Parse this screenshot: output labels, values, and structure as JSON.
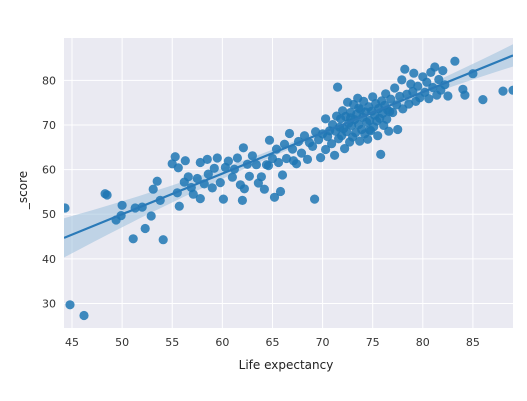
{
  "chart_data": {
    "type": "scatter",
    "xlabel": "Life expectancy",
    "ylabel": "_score",
    "xlim": [
      44.2,
      89.0
    ],
    "ylim": [
      24.5,
      89.5
    ],
    "xticks": [
      45,
      50,
      55,
      60,
      65,
      70,
      75,
      80,
      85
    ],
    "yticks": [
      30,
      40,
      50,
      60,
      70,
      80
    ],
    "grid": true,
    "style": "seaborn darkgrid",
    "colors": {
      "background": "#eaeaf2",
      "grid": "#ffffff",
      "points": "#1f77b4",
      "line": "#2a7ab8",
      "band": "#9bbfdc"
    },
    "regression": {
      "x": [
        44.2,
        89.0
      ],
      "y": [
        44.7,
        85.6
      ]
    },
    "points": [
      [
        44.3,
        51.4
      ],
      [
        44.8,
        29.7
      ],
      [
        46.2,
        27.3
      ],
      [
        48.3,
        54.6
      ],
      [
        48.5,
        54.3
      ],
      [
        49.4,
        48.7
      ],
      [
        50.0,
        52.0
      ],
      [
        49.9,
        49.7
      ],
      [
        51.1,
        44.5
      ],
      [
        51.3,
        51.4
      ],
      [
        52.0,
        51.6
      ],
      [
        52.3,
        46.8
      ],
      [
        52.9,
        49.6
      ],
      [
        53.1,
        55.6
      ],
      [
        53.5,
        57.4
      ],
      [
        54.1,
        44.3
      ],
      [
        53.8,
        53.1
      ],
      [
        55.0,
        61.3
      ],
      [
        55.3,
        62.9
      ],
      [
        55.6,
        60.4
      ],
      [
        55.5,
        54.8
      ],
      [
        55.7,
        51.8
      ],
      [
        56.2,
        57.2
      ],
      [
        56.3,
        62.0
      ],
      [
        56.6,
        58.4
      ],
      [
        56.9,
        56.0
      ],
      [
        57.1,
        54.5
      ],
      [
        57.5,
        58.0
      ],
      [
        57.8,
        61.6
      ],
      [
        57.8,
        53.5
      ],
      [
        58.2,
        56.8
      ],
      [
        58.5,
        62.3
      ],
      [
        58.6,
        59.0
      ],
      [
        59.0,
        55.9
      ],
      [
        59.2,
        60.3
      ],
      [
        59.5,
        62.6
      ],
      [
        59.8,
        57.1
      ],
      [
        60.1,
        53.4
      ],
      [
        60.3,
        60.5
      ],
      [
        60.6,
        61.9
      ],
      [
        61.0,
        58.3
      ],
      [
        61.2,
        60.1
      ],
      [
        61.5,
        62.6
      ],
      [
        61.8,
        56.6
      ],
      [
        62.0,
        53.1
      ],
      [
        62.2,
        55.7
      ],
      [
        62.1,
        64.9
      ],
      [
        62.5,
        61.2
      ],
      [
        62.7,
        58.5
      ],
      [
        63.0,
        63.1
      ],
      [
        63.4,
        61.1
      ],
      [
        63.6,
        57.0
      ],
      [
        63.9,
        58.4
      ],
      [
        64.2,
        55.6
      ],
      [
        64.4,
        61.1
      ],
      [
        64.6,
        60.9
      ],
      [
        64.7,
        66.6
      ],
      [
        65.0,
        62.5
      ],
      [
        65.2,
        53.8
      ],
      [
        65.4,
        64.6
      ],
      [
        65.6,
        61.6
      ],
      [
        65.8,
        55.1
      ],
      [
        66.0,
        58.8
      ],
      [
        66.2,
        65.7
      ],
      [
        66.4,
        62.5
      ],
      [
        66.7,
        68.1
      ],
      [
        67.0,
        64.6
      ],
      [
        67.1,
        62.0
      ],
      [
        67.4,
        61.3
      ],
      [
        67.6,
        66.3
      ],
      [
        67.9,
        63.7
      ],
      [
        68.2,
        67.6
      ],
      [
        68.5,
        62.3
      ],
      [
        68.7,
        66.0
      ],
      [
        69.0,
        65.2
      ],
      [
        69.2,
        53.4
      ],
      [
        69.3,
        68.5
      ],
      [
        69.6,
        66.7
      ],
      [
        69.8,
        62.7
      ],
      [
        70.0,
        68.0
      ],
      [
        70.3,
        64.5
      ],
      [
        70.5,
        67.4
      ],
      [
        70.7,
        68.7
      ],
      [
        70.9,
        65.8
      ],
      [
        71.0,
        70.1
      ],
      [
        71.2,
        63.2
      ],
      [
        71.3,
        68.6
      ],
      [
        71.4,
        72.0
      ],
      [
        71.5,
        78.5
      ],
      [
        71.6,
        66.9
      ],
      [
        71.7,
        69.5
      ],
      [
        71.8,
        71.4
      ],
      [
        71.9,
        67.6
      ],
      [
        72.0,
        73.2
      ],
      [
        72.1,
        69.2
      ],
      [
        72.2,
        64.7
      ],
      [
        72.3,
        71.9
      ],
      [
        72.4,
        68.5
      ],
      [
        72.5,
        75.1
      ],
      [
        72.6,
        70.4
      ],
      [
        72.7,
        66.2
      ],
      [
        72.8,
        72.8
      ],
      [
        72.9,
        69.9
      ],
      [
        73.0,
        67.3
      ],
      [
        73.1,
        74.6
      ],
      [
        73.2,
        71.2
      ],
      [
        73.3,
        68.3
      ],
      [
        73.4,
        72.4
      ],
      [
        73.5,
        76.0
      ],
      [
        73.6,
        70.1
      ],
      [
        73.7,
        66.4
      ],
      [
        73.8,
        73.5
      ],
      [
        73.9,
        69.0
      ],
      [
        74.0,
        71.7
      ],
      [
        74.1,
        75.3
      ],
      [
        74.2,
        68.0
      ],
      [
        74.3,
        72.9
      ],
      [
        74.4,
        70.6
      ],
      [
        74.5,
        66.8
      ],
      [
        74.6,
        74.1
      ],
      [
        74.7,
        71.0
      ],
      [
        74.8,
        68.7
      ],
      [
        74.9,
        73.1
      ],
      [
        75.0,
        76.3
      ],
      [
        75.1,
        69.6
      ],
      [
        75.2,
        72.2
      ],
      [
        75.3,
        74.8
      ],
      [
        75.4,
        70.9
      ],
      [
        75.5,
        67.6
      ],
      [
        75.6,
        73.7
      ],
      [
        75.7,
        71.5
      ],
      [
        75.8,
        63.4
      ],
      [
        75.9,
        75.4
      ],
      [
        76.0,
        72.6
      ],
      [
        76.1,
        69.9
      ],
      [
        76.2,
        74.4
      ],
      [
        76.3,
        77.0
      ],
      [
        76.4,
        71.3
      ],
      [
        76.5,
        73.3
      ],
      [
        76.6,
        68.6
      ],
      [
        76.8,
        75.8
      ],
      [
        77.0,
        72.8
      ],
      [
        77.2,
        78.3
      ],
      [
        77.4,
        74.5
      ],
      [
        77.5,
        69.0
      ],
      [
        77.7,
        76.4
      ],
      [
        77.9,
        80.1
      ],
      [
        78.0,
        73.6
      ],
      [
        78.2,
        82.5
      ],
      [
        78.4,
        76.9
      ],
      [
        78.6,
        74.7
      ],
      [
        78.8,
        79.2
      ],
      [
        79.0,
        77.5
      ],
      [
        79.1,
        81.6
      ],
      [
        79.3,
        75.3
      ],
      [
        79.5,
        78.7
      ],
      [
        79.7,
        76.1
      ],
      [
        80.0,
        80.8
      ],
      [
        80.2,
        77.3
      ],
      [
        80.4,
        79.6
      ],
      [
        80.6,
        75.9
      ],
      [
        80.8,
        81.8
      ],
      [
        81.0,
        78.4
      ],
      [
        81.2,
        83.0
      ],
      [
        81.4,
        76.7
      ],
      [
        81.6,
        80.2
      ],
      [
        81.8,
        77.8
      ],
      [
        82.0,
        82.2
      ],
      [
        82.2,
        79.0
      ],
      [
        82.5,
        76.5
      ],
      [
        83.2,
        84.3
      ],
      [
        84.0,
        78.0
      ],
      [
        84.2,
        76.7
      ],
      [
        85.0,
        81.5
      ],
      [
        86.0,
        75.7
      ],
      [
        88.0,
        77.6
      ],
      [
        89.0,
        77.8
      ],
      [
        74.7,
        68.9
      ],
      [
        72.8,
        71.6
      ],
      [
        76.7,
        73.0
      ],
      [
        70.3,
        71.4
      ],
      [
        73.6,
        73.8
      ]
    ]
  }
}
